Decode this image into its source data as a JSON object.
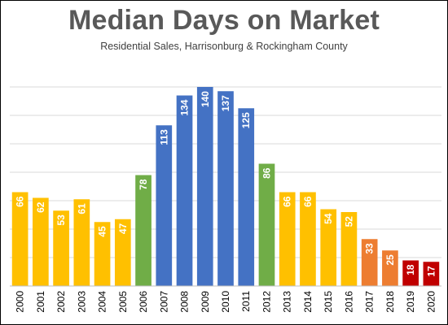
{
  "chart_data": {
    "type": "bar",
    "title": "Median Days on Market",
    "subtitle": "Residential Sales, Harrisonburg & Rockingham County",
    "xlabel": "",
    "ylabel": "",
    "ylim": [
      0,
      150
    ],
    "grid": true,
    "categories": [
      "2000",
      "2001",
      "2002",
      "2003",
      "2004",
      "2005",
      "2006",
      "2007",
      "2008",
      "2009",
      "2010",
      "2011",
      "2012",
      "2013",
      "2014",
      "2015",
      "2016",
      "2017",
      "2018",
      "2019",
      "2020"
    ],
    "values": [
      66,
      62,
      53,
      61,
      45,
      47,
      78,
      113,
      134,
      140,
      137,
      125,
      86,
      66,
      66,
      54,
      52,
      33,
      25,
      18,
      17
    ],
    "bar_colors": [
      "#FFC000",
      "#FFC000",
      "#FFC000",
      "#FFC000",
      "#FFC000",
      "#FFC000",
      "#70AD47",
      "#4472C4",
      "#4472C4",
      "#4472C4",
      "#4472C4",
      "#4472C4",
      "#70AD47",
      "#FFC000",
      "#FFC000",
      "#FFC000",
      "#FFC000",
      "#ED7D31",
      "#ED7D31",
      "#C00000",
      "#C00000"
    ],
    "gridline_color": "#d9d9d9"
  }
}
